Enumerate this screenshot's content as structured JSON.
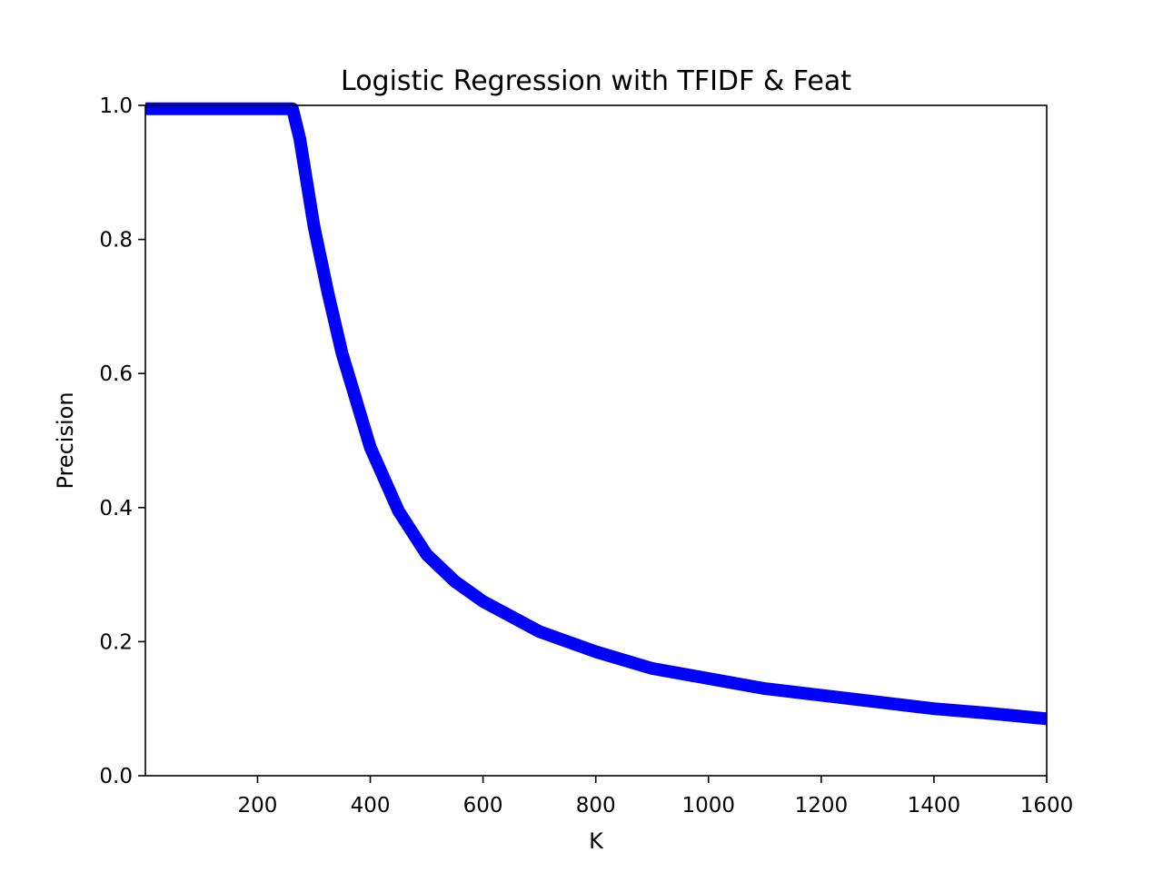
{
  "chart_data": {
    "type": "line",
    "title": "Logistic Regression with TFIDF & Feat",
    "xlabel": "K",
    "ylabel": "Precision",
    "xlim": [
      1,
      1600
    ],
    "ylim": [
      0.0,
      1.0
    ],
    "x_ticks": [
      200,
      400,
      600,
      800,
      1000,
      1200,
      1400,
      1600
    ],
    "x_tick_labels": [
      "200",
      "400",
      "600",
      "800",
      "1000",
      "1200",
      "1400",
      "1600"
    ],
    "y_ticks": [
      0.0,
      0.2,
      0.4,
      0.6,
      0.8,
      1.0
    ],
    "y_tick_labels": [
      "0.0",
      "0.2",
      "0.4",
      "0.6",
      "0.8",
      "1.0"
    ],
    "grid": false,
    "legend": "none",
    "series": [
      {
        "color": "#0000ff",
        "x": [
          1,
          100,
          200,
          250,
          262,
          275,
          300,
          325,
          350,
          375,
          400,
          450,
          500,
          550,
          600,
          700,
          800,
          900,
          1000,
          1100,
          1200,
          1300,
          1400,
          1500,
          1600
        ],
        "y": [
          0.995,
          0.995,
          0.995,
          0.995,
          0.995,
          0.95,
          0.82,
          0.72,
          0.63,
          0.56,
          0.49,
          0.395,
          0.33,
          0.29,
          0.26,
          0.215,
          0.185,
          0.16,
          0.145,
          0.13,
          0.12,
          0.11,
          0.1,
          0.093,
          0.085
        ]
      }
    ]
  }
}
